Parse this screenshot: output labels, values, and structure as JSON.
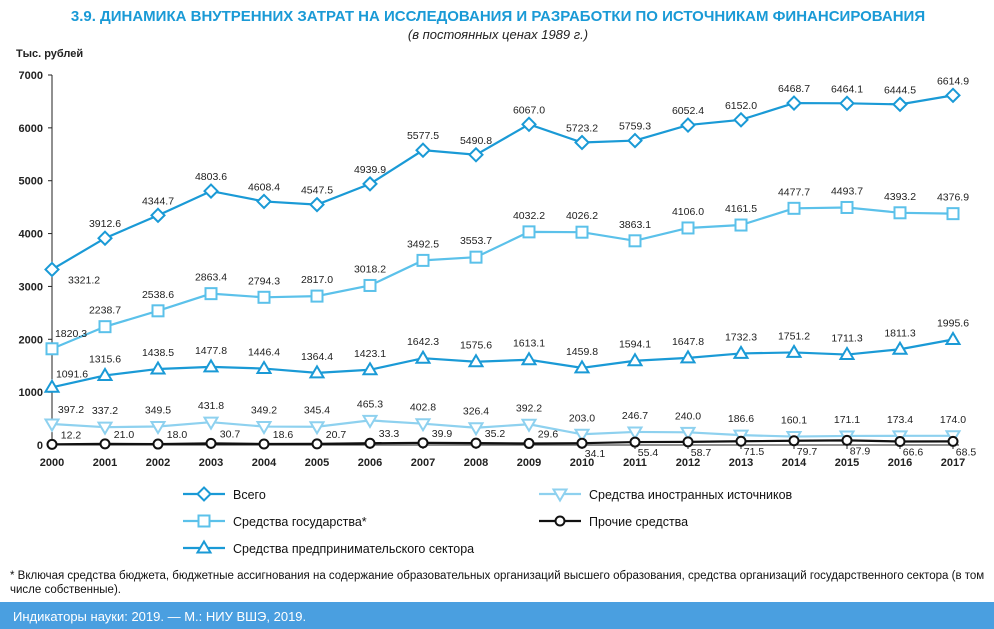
{
  "chart_data": {
    "type": "line",
    "title": "3.9. ДИНАМИКА ВНУТРЕННИХ ЗАТРАТ НА ИССЛЕДОВАНИЯ И РАЗРАБОТКИ ПО ИСТОЧНИКАМ ФИНАНСИРОВАНИЯ",
    "subtitle": "(в постоянных ценах 1989 г.)",
    "ylabel": "Тыс. рублей",
    "ylim": [
      0,
      7000
    ],
    "yticks": [
      "0",
      "1000",
      "2000",
      "3000",
      "4000",
      "5000",
      "6000",
      "7000"
    ],
    "categories": [
      "2000",
      "2001",
      "2002",
      "2003",
      "2004",
      "2005",
      "2006",
      "2007",
      "2008",
      "2009",
      "2010",
      "2011",
      "2012",
      "2013",
      "2014",
      "2015",
      "2016",
      "2017"
    ],
    "series": [
      {
        "name": "Всего",
        "color": "#1a9ad6",
        "marker": "diamond",
        "values": [
          3321.2,
          3912.6,
          4344.7,
          4803.6,
          4608.4,
          4547.5,
          4939.9,
          5577.5,
          5490.8,
          6067.0,
          5723.2,
          5759.3,
          6052.4,
          6152.0,
          6468.7,
          6464.1,
          6444.5,
          6614.9
        ],
        "labels": [
          "3321.2",
          "3912.6",
          "4344.7",
          "4803.6",
          "4608.4",
          "4547.5",
          "4939.9",
          "5577.5",
          "5490.8",
          "6067.0",
          "5723.2",
          "5759.3",
          "6052.4",
          "6152.0",
          "6468.7",
          "6464.1",
          "6444.5",
          "6614.9"
        ]
      },
      {
        "name": "Средства государства*",
        "color": "#5bc1ea",
        "marker": "square",
        "values": [
          1820.3,
          2238.7,
          2538.6,
          2863.4,
          2794.3,
          2817.0,
          3018.2,
          3492.5,
          3553.7,
          4032.2,
          4026.2,
          3863.1,
          4106.0,
          4161.5,
          4477.7,
          4493.7,
          4393.2,
          4376.9
        ],
        "labels": [
          "1820.3",
          "2238.7",
          "2538.6",
          "2863.4",
          "2794.3",
          "2817.0",
          "3018.2",
          "3492.5",
          "3553.7",
          "4032.2",
          "4026.2",
          "3863.1",
          "4106.0",
          "4161.5",
          "4477.7",
          "4493.7",
          "4393.2",
          "4376.9"
        ]
      },
      {
        "name": "Средства предпринимательского сектора",
        "color": "#1a9ad6",
        "marker": "triangle",
        "values": [
          1091.6,
          1315.6,
          1438.5,
          1477.8,
          1446.4,
          1364.4,
          1423.1,
          1642.3,
          1575.6,
          1613.1,
          1459.8,
          1594.1,
          1647.8,
          1732.3,
          1751.2,
          1711.3,
          1811.3,
          1995.6
        ],
        "labels": [
          "1091.6",
          "1315.6",
          "1438.5",
          "1477.8",
          "1446.4",
          "1364.4",
          "1423.1",
          "1642.3",
          "1575.6",
          "1613.1",
          "1459.8",
          "1594.1",
          "1647.8",
          "1732.3",
          "1751.2",
          "1711.3",
          "1811.3",
          "1995.6"
        ]
      },
      {
        "name": "Средства иностранных источников",
        "color": "#8ed1ef",
        "marker": "triangle-down",
        "values": [
          397.2,
          337.2,
          349.5,
          431.8,
          349.2,
          345.4,
          465.3,
          402.8,
          326.4,
          392.2,
          203.0,
          246.7,
          240.0,
          186.6,
          160.1,
          171.1,
          173.4,
          174.0
        ],
        "labels": [
          "397.2",
          "337.2",
          "349.5",
          "431.8",
          "349.2",
          "345.4",
          "465.3",
          "402.8",
          "326.4",
          "392.2",
          "203.0",
          "246.7",
          "240.0",
          "186.6",
          "160.1",
          "171.1",
          "173.4",
          "174.0"
        ]
      },
      {
        "name": "Прочие средства",
        "color": "#111111",
        "marker": "circle",
        "values": [
          12.2,
          21.0,
          18.0,
          30.7,
          18.6,
          20.7,
          33.3,
          39.9,
          35.2,
          29.6,
          34.1,
          55.4,
          58.7,
          71.5,
          79.7,
          87.9,
          66.6,
          68.5
        ],
        "labels": [
          "12.2",
          "21.0",
          "18.0",
          "30.7",
          "18.6",
          "20.7",
          "33.3",
          "39.9",
          "35.2",
          "29.6",
          "34.1",
          "55.4",
          "58.7",
          "71.5",
          "79.7",
          "87.9",
          "66.6",
          "68.5"
        ]
      }
    ],
    "legend_order": [
      0,
      3,
      1,
      4,
      2
    ],
    "grid": false
  },
  "footnote": "* Включая средства бюджета, бюджетные ассигнования на содержание образовательных организаций высшего образования, средства организаций государственного сектора (в том числе собственные).",
  "source": "Индикаторы науки: 2019. — М.: НИУ ВШЭ, 2019."
}
